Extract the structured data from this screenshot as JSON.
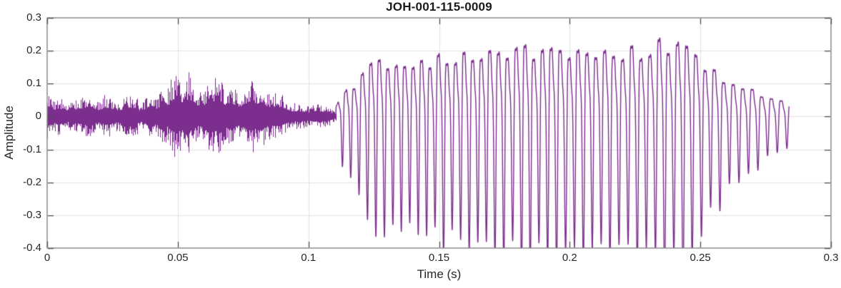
{
  "figure": {
    "background": "#ffffff"
  },
  "chart_data": {
    "type": "line",
    "subtype": "audio-waveform",
    "title": "JOH-001-115-0009",
    "xlabel": "Time (s)",
    "ylabel": "Amplitude",
    "xlim": [
      0,
      0.3
    ],
    "ylim": [
      -0.4,
      0.3
    ],
    "grid": true,
    "legend": "none",
    "x_ticks": {
      "values": [
        0,
        0.05,
        0.1,
        0.15,
        0.2,
        0.25,
        0.3
      ],
      "labels": [
        "0",
        "0.05",
        "0.1",
        "0.15",
        "0.2",
        "0.25",
        "0.3"
      ]
    },
    "y_ticks": {
      "values": [
        -0.4,
        -0.3,
        -0.2,
        -0.1,
        0,
        0.1,
        0.2,
        0.3
      ],
      "labels": [
        "-0.4",
        "-0.3",
        "-0.2",
        "-0.1",
        "0",
        "0.1",
        "0.2",
        "0.3"
      ]
    },
    "colors": {
      "line": "#7C2E8E",
      "grid": "#e2e2e2",
      "axis_box": "#8a8a8a",
      "ticks": "#4a4a4a",
      "text": "#262626"
    },
    "signal": {
      "description": "Speech waveform: unvoiced fricative noise from 0 to ~0.11 s, voiced periodic segment from ~0.11 to ~0.284 s, decaying tail; trace ends near t=0.284 s.",
      "noise_segment": {
        "t_start": 0,
        "t_end": 0.1105,
        "peak_envelope": [
          [
            0,
            0.08
          ],
          [
            0.003,
            0.05
          ],
          [
            0.008,
            0.055
          ],
          [
            0.013,
            0.065
          ],
          [
            0.018,
            0.06
          ],
          [
            0.024,
            0.055
          ],
          [
            0.03,
            0.065
          ],
          [
            0.036,
            0.06
          ],
          [
            0.042,
            0.08
          ],
          [
            0.046,
            0.12
          ],
          [
            0.049,
            0.165
          ],
          [
            0.052,
            0.135
          ],
          [
            0.056,
            0.1
          ],
          [
            0.06,
            0.11
          ],
          [
            0.064,
            0.12
          ],
          [
            0.068,
            0.1
          ],
          [
            0.072,
            0.115
          ],
          [
            0.076,
            0.1
          ],
          [
            0.079,
            0.12
          ],
          [
            0.082,
            0.11
          ],
          [
            0.086,
            0.085
          ],
          [
            0.09,
            0.055
          ],
          [
            0.094,
            0.05
          ],
          [
            0.098,
            0.045
          ],
          [
            0.102,
            0.04
          ],
          [
            0.106,
            0.032
          ],
          [
            0.1105,
            0.022
          ]
        ],
        "neg_asymmetry": 0.95
      },
      "voiced_segment": {
        "t_start": 0.1105,
        "t_end": 0.284,
        "f0_start_hz": 315,
        "f0_end_hz": 272,
        "pos_envelope": [
          [
            0.1105,
            0.03
          ],
          [
            0.113,
            0.07
          ],
          [
            0.115,
            0.095
          ],
          [
            0.118,
            0.09
          ],
          [
            0.12,
            0.13
          ],
          [
            0.123,
            0.15
          ],
          [
            0.127,
            0.16
          ],
          [
            0.131,
            0.15
          ],
          [
            0.135,
            0.17
          ],
          [
            0.139,
            0.16
          ],
          [
            0.143,
            0.17
          ],
          [
            0.147,
            0.16
          ],
          [
            0.151,
            0.18
          ],
          [
            0.155,
            0.17
          ],
          [
            0.159,
            0.19
          ],
          [
            0.163,
            0.18
          ],
          [
            0.167,
            0.19
          ],
          [
            0.171,
            0.18
          ],
          [
            0.175,
            0.2
          ],
          [
            0.179,
            0.19
          ],
          [
            0.183,
            0.2
          ],
          [
            0.187,
            0.19
          ],
          [
            0.191,
            0.2
          ],
          [
            0.195,
            0.21
          ],
          [
            0.199,
            0.19
          ],
          [
            0.203,
            0.2
          ],
          [
            0.207,
            0.21
          ],
          [
            0.211,
            0.19
          ],
          [
            0.215,
            0.2
          ],
          [
            0.219,
            0.19
          ],
          [
            0.223,
            0.2
          ],
          [
            0.227,
            0.19
          ],
          [
            0.231,
            0.21
          ],
          [
            0.235,
            0.22
          ],
          [
            0.239,
            0.2
          ],
          [
            0.243,
            0.23
          ],
          [
            0.247,
            0.2
          ],
          [
            0.25,
            0.17
          ],
          [
            0.254,
            0.14
          ],
          [
            0.258,
            0.12
          ],
          [
            0.262,
            0.1
          ],
          [
            0.266,
            0.09
          ],
          [
            0.27,
            0.08
          ],
          [
            0.274,
            0.065
          ],
          [
            0.278,
            0.055
          ],
          [
            0.284,
            0.045
          ]
        ],
        "neg_envelope": [
          [
            0.1105,
            0.03
          ],
          [
            0.113,
            0.08
          ],
          [
            0.115,
            0.1
          ],
          [
            0.118,
            0.14
          ],
          [
            0.12,
            0.23
          ],
          [
            0.123,
            0.28
          ],
          [
            0.127,
            0.3
          ],
          [
            0.131,
            0.29
          ],
          [
            0.135,
            0.31
          ],
          [
            0.139,
            0.3
          ],
          [
            0.143,
            0.33
          ],
          [
            0.147,
            0.34
          ],
          [
            0.151,
            0.35
          ],
          [
            0.155,
            0.32
          ],
          [
            0.159,
            0.31
          ],
          [
            0.163,
            0.33
          ],
          [
            0.167,
            0.31
          ],
          [
            0.171,
            0.32
          ],
          [
            0.175,
            0.3
          ],
          [
            0.179,
            0.31
          ],
          [
            0.183,
            0.3
          ],
          [
            0.187,
            0.31
          ],
          [
            0.191,
            0.32
          ],
          [
            0.195,
            0.3
          ],
          [
            0.199,
            0.31
          ],
          [
            0.203,
            0.3
          ],
          [
            0.207,
            0.31
          ],
          [
            0.211,
            0.27
          ],
          [
            0.215,
            0.29
          ],
          [
            0.219,
            0.3
          ],
          [
            0.223,
            0.31
          ],
          [
            0.227,
            0.32
          ],
          [
            0.231,
            0.3
          ],
          [
            0.235,
            0.33
          ],
          [
            0.239,
            0.31
          ],
          [
            0.243,
            0.29
          ],
          [
            0.247,
            0.28
          ],
          [
            0.25,
            0.22
          ],
          [
            0.254,
            0.18
          ],
          [
            0.258,
            0.14
          ],
          [
            0.262,
            0.11
          ],
          [
            0.266,
            0.085
          ],
          [
            0.27,
            0.065
          ],
          [
            0.274,
            0.05
          ],
          [
            0.278,
            0.04
          ],
          [
            0.284,
            0.03
          ]
        ]
      }
    }
  }
}
